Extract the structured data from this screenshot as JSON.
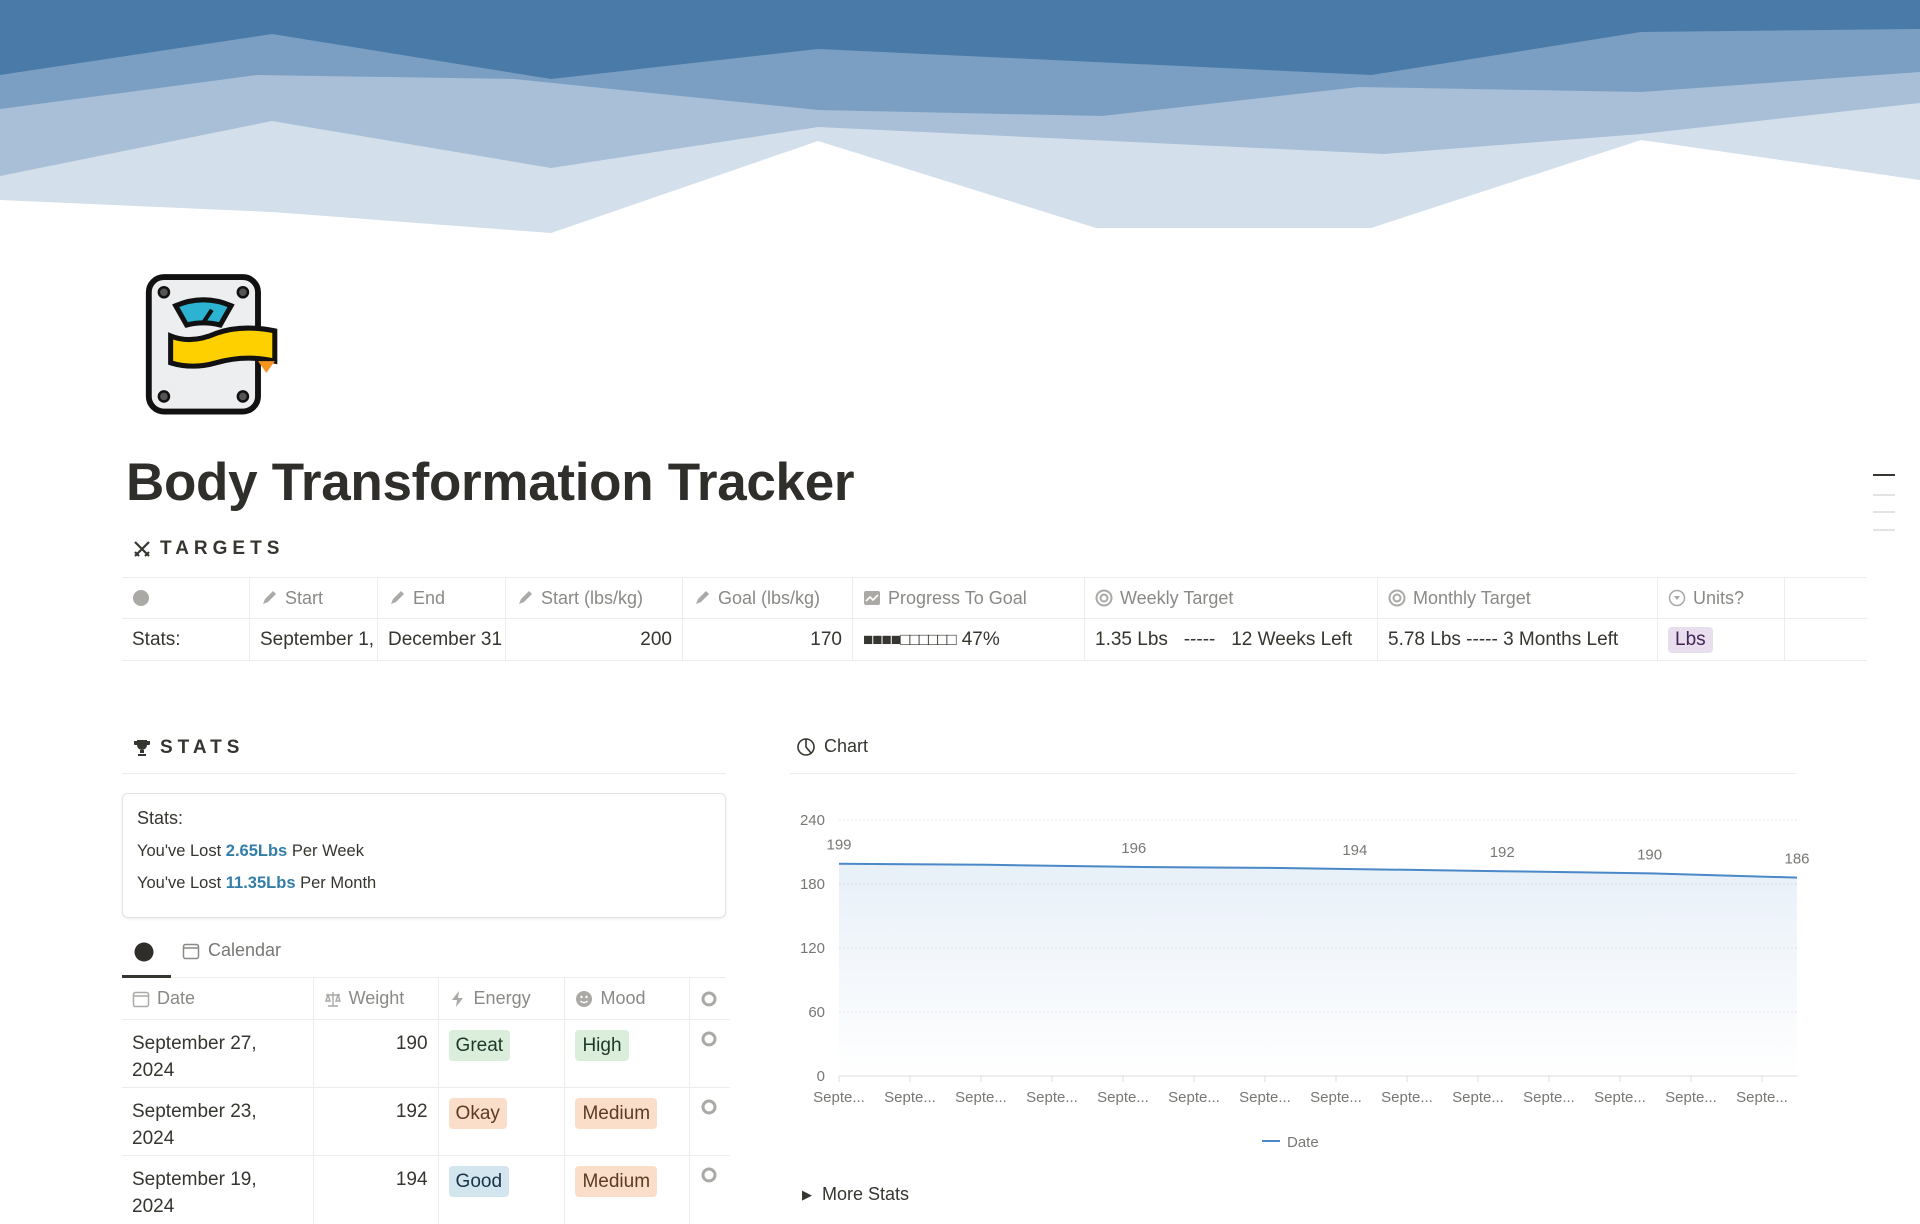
{
  "page": {
    "title": "Body Transformation Tracker"
  },
  "targets": {
    "heading": "TARGETS",
    "columns": [
      "",
      "Start",
      "End",
      "Start (lbs/kg)",
      "Goal (lbs/kg)",
      "Progress To Goal",
      "Weekly Target",
      "Monthly Target",
      "Units?"
    ],
    "row": {
      "label": "Stats:",
      "start": "September 1,",
      "end": "December 31",
      "start_weight": "200",
      "goal_weight": "170",
      "progress_bar": "■■■■□□□□□□",
      "progress_pct": "47%",
      "progress_value": 0.47,
      "weekly": "1.35 Lbs   -----   12 Weeks Left",
      "monthly": "5.78 Lbs ----- 3 Months Left",
      "units": "Lbs"
    }
  },
  "stats": {
    "heading": "STATS",
    "callout_title": "Stats:",
    "line1": {
      "pre": "You've Lost ",
      "value": "2.65Lbs",
      "post": " Per Week"
    },
    "line2": {
      "pre": "You've Lost ",
      "value": "11.35Lbs",
      "post": " Per Month"
    }
  },
  "db": {
    "tabs": [
      "",
      "Calendar"
    ],
    "columns": [
      "Date",
      "Weight",
      "Energy",
      "Mood"
    ],
    "rows": [
      {
        "date": "September 27, 2024",
        "weight": "190",
        "energy": "Great",
        "energy_color": "green",
        "mood": "High",
        "mood_color": "green"
      },
      {
        "date": "September 23, 2024",
        "weight": "192",
        "energy": "Okay",
        "energy_color": "pink",
        "mood": "Medium",
        "mood_color": "pink"
      },
      {
        "date": "September 19, 2024",
        "weight": "194",
        "energy": "Good",
        "energy_color": "blue",
        "mood": "Medium",
        "mood_color": "pink"
      }
    ]
  },
  "chart": {
    "heading": "Chart",
    "more": "More Stats"
  },
  "chart_data": {
    "type": "area",
    "categories": [
      "Septe...",
      "Septe...",
      "Septe...",
      "Septe...",
      "Septe...",
      "Septe...",
      "Septe...",
      "Septe...",
      "Septe...",
      "Septe...",
      "Septe...",
      "Septe...",
      "Septe...",
      "Septe..."
    ],
    "series": [
      {
        "name": "Date",
        "values": [
          199,
          198.5,
          198,
          197,
          196,
          195.5,
          195,
          194,
          193,
          192,
          191,
          190,
          188,
          186
        ],
        "data_labels": [
          "199",
          null,
          null,
          null,
          "196",
          null,
          null,
          "194",
          null,
          "192",
          null,
          "190",
          null,
          "186"
        ]
      }
    ],
    "yticks": [
      "0",
      "60",
      "120",
      "180",
      "240"
    ],
    "ylim": [
      0,
      240
    ],
    "grid": true,
    "legend": "bottom",
    "color": "#4a88c7"
  }
}
